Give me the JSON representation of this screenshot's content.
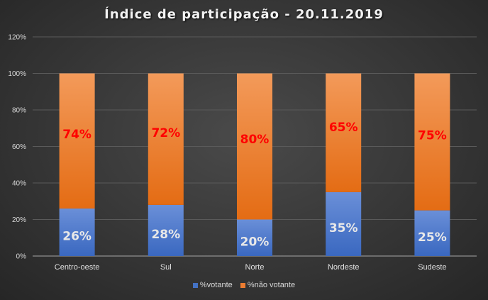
{
  "chart_data": {
    "type": "bar",
    "stacked": true,
    "title": "Índice de participação  - 20.11.2019",
    "xlabel": "",
    "ylabel": "",
    "ylim": [
      0,
      120
    ],
    "yticks": [
      "0%",
      "20%",
      "40%",
      "60%",
      "80%",
      "100%",
      "120%"
    ],
    "ytick_values": [
      0,
      20,
      40,
      60,
      80,
      100,
      120
    ],
    "grid": true,
    "legend_position": "bottom",
    "categories": [
      "Centro-oeste",
      "Sul",
      "Norte",
      "Nordeste",
      "Sudeste"
    ],
    "series": [
      {
        "name": "%votante",
        "color": "#4472c4",
        "values": [
          26,
          28,
          20,
          35,
          25
        ],
        "labels": [
          "26%",
          "28%",
          "20%",
          "35%",
          "25%"
        ],
        "label_color": "#e8e8e8"
      },
      {
        "name": "%não votante",
        "color": "#ed7d31",
        "values": [
          74,
          72,
          80,
          65,
          75
        ],
        "labels": [
          "74%",
          "72%",
          "80%",
          "65%",
          "75%"
        ],
        "label_color": "#ff0000"
      }
    ]
  }
}
